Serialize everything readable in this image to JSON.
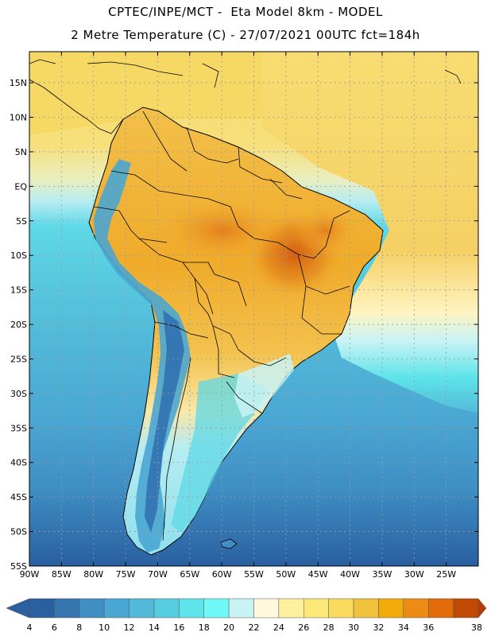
{
  "title_line1": "CPTEC/INPE/MCT -  Eta Model 8km - MODEL",
  "title_line2": "2 Metre Temperature (C) - 27/07/2021 00UTC fct=184h",
  "lat_labels": [
    "15N",
    "10N",
    "5N",
    "EQ",
    "5S",
    "10S",
    "15S",
    "20S",
    "25S",
    "30S",
    "35S",
    "40S",
    "45S",
    "50S",
    "55S"
  ],
  "lon_labels": [
    "90W",
    "85W",
    "80W",
    "75W",
    "70W",
    "65W",
    "60W",
    "55W",
    "50W",
    "45W",
    "40W",
    "35W",
    "30W",
    "25W"
  ],
  "colorbar": {
    "labels": [
      "4",
      "6",
      "8",
      "10",
      "12",
      "14",
      "16",
      "18",
      "20",
      "22",
      "24",
      "26",
      "28",
      "30",
      "32",
      "34",
      "36",
      "38"
    ],
    "colors": [
      "#2a5fa0",
      "#3575b0",
      "#3f8ec4",
      "#4aa6d2",
      "#52bad8",
      "#56cce0",
      "#5ee4ea",
      "#6ef8f6",
      "#c8f3f5",
      "#fff8dc",
      "#fff0a0",
      "#fce779",
      "#f9d95e",
      "#f0c23c",
      "#f0ab0a",
      "#ec8c14",
      "#e06b08",
      "#c04a04"
    ],
    "low_color": "#2a5fa0",
    "high_color": "#b33d05"
  },
  "colors": {
    "ocean_north": "#f7dd72",
    "ocean_mid": "#54c8df",
    "ocean_south": "#3f8ec4",
    "ocean_far_south": "#2a5fa0",
    "land_hot": "#f2b32c",
    "land_very_hot": "#e07214",
    "andes": "#4aa6d2",
    "grid": "#9a9a9a"
  }
}
